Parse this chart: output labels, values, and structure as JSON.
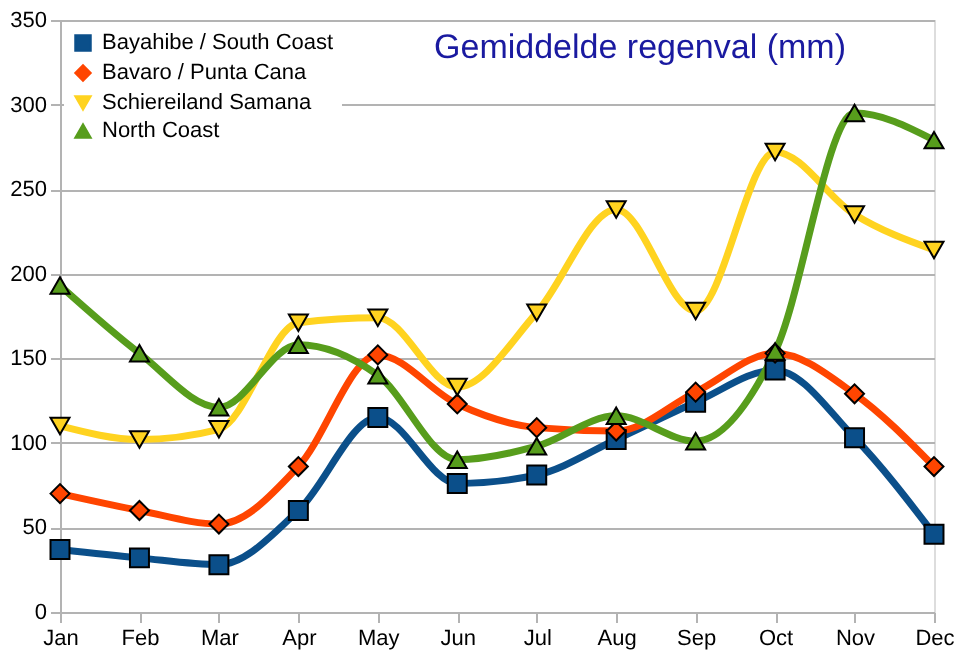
{
  "chart_data": {
    "type": "line",
    "title": "Gemiddelde regenval (mm)",
    "categories": [
      "Jan",
      "Feb",
      "Mar",
      "Apr",
      "May",
      "Jun",
      "Jul",
      "Aug",
      "Sep",
      "Oct",
      "Nov",
      "Dec"
    ],
    "series": [
      {
        "name": "Bayahibe / South Coast",
        "color": "#0b4f8a",
        "marker": "square",
        "values": [
          37,
          32,
          28,
          60,
          115,
          76,
          81,
          102,
          124,
          143,
          103,
          46
        ]
      },
      {
        "name": "Bavaro / Punta Cana",
        "color": "#ff4500",
        "marker": "diamond",
        "values": [
          70,
          60,
          52,
          86,
          152,
          123,
          109,
          107,
          130,
          153,
          129,
          86
        ]
      },
      {
        "name": "Schiereiland Samana",
        "color": "#ffd320",
        "marker": "triangle-down",
        "values": [
          110,
          102,
          108,
          171,
          174,
          133,
          177,
          238,
          178,
          272,
          235,
          214
        ]
      },
      {
        "name": "North Coast",
        "color": "#579d1c",
        "marker": "triangle-up",
        "values": [
          193,
          153,
          121,
          158,
          140,
          90,
          98,
          116,
          101,
          154,
          295,
          279
        ]
      }
    ],
    "ylim": [
      0,
      350
    ],
    "yticks": [
      0,
      50,
      100,
      150,
      200,
      250,
      300,
      350
    ],
    "grid": "y",
    "legend": "top left",
    "line_style": "solid"
  }
}
